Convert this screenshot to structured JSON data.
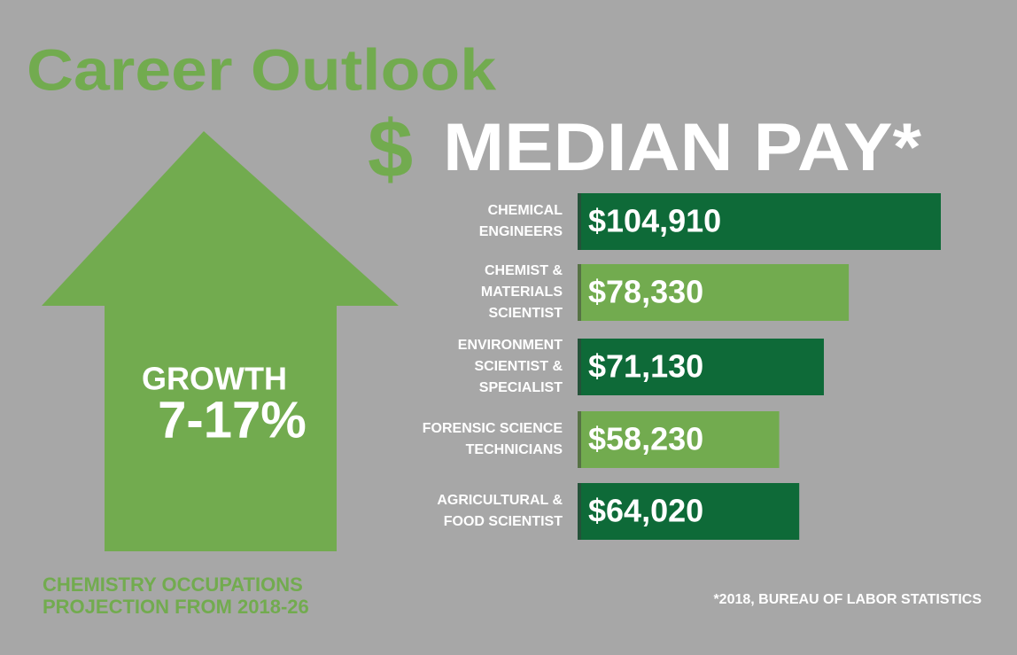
{
  "chart_data": {
    "type": "bar",
    "orientation": "horizontal",
    "title": "Career Outlook",
    "subtitle_symbol": "$",
    "subtitle": "MEDIAN PAY*",
    "growth_label": "GROWTH",
    "growth_value": "7-17%",
    "footnote": [
      "CHEMISTRY OCCUPATIONS",
      "PROJECTION FROM 2018-26"
    ],
    "source": "*2018, BUREAU OF LABOR STATISTICS",
    "categories": [
      [
        "CHEMICAL",
        "ENGINEERS"
      ],
      [
        "CHEMIST &",
        "MATERIALS",
        "SCIENTIST"
      ],
      [
        "ENVIRONMENT",
        "SCIENTIST &",
        "SPECIALIST"
      ],
      [
        "FORENSIC SCIENCE",
        "TECHNICIANS"
      ],
      [
        "AGRICULTURAL &",
        "FOOD SCIENTIST"
      ]
    ],
    "values": [
      104910,
      78330,
      71130,
      58230,
      64020
    ],
    "value_labels": [
      "$104,910",
      "$78,330",
      "$71,130",
      "$58,230",
      "$64,020"
    ],
    "colors": [
      "#0e6a38",
      "#72ab4f",
      "#0e6a38",
      "#72ab4f",
      "#0e6a38"
    ]
  }
}
